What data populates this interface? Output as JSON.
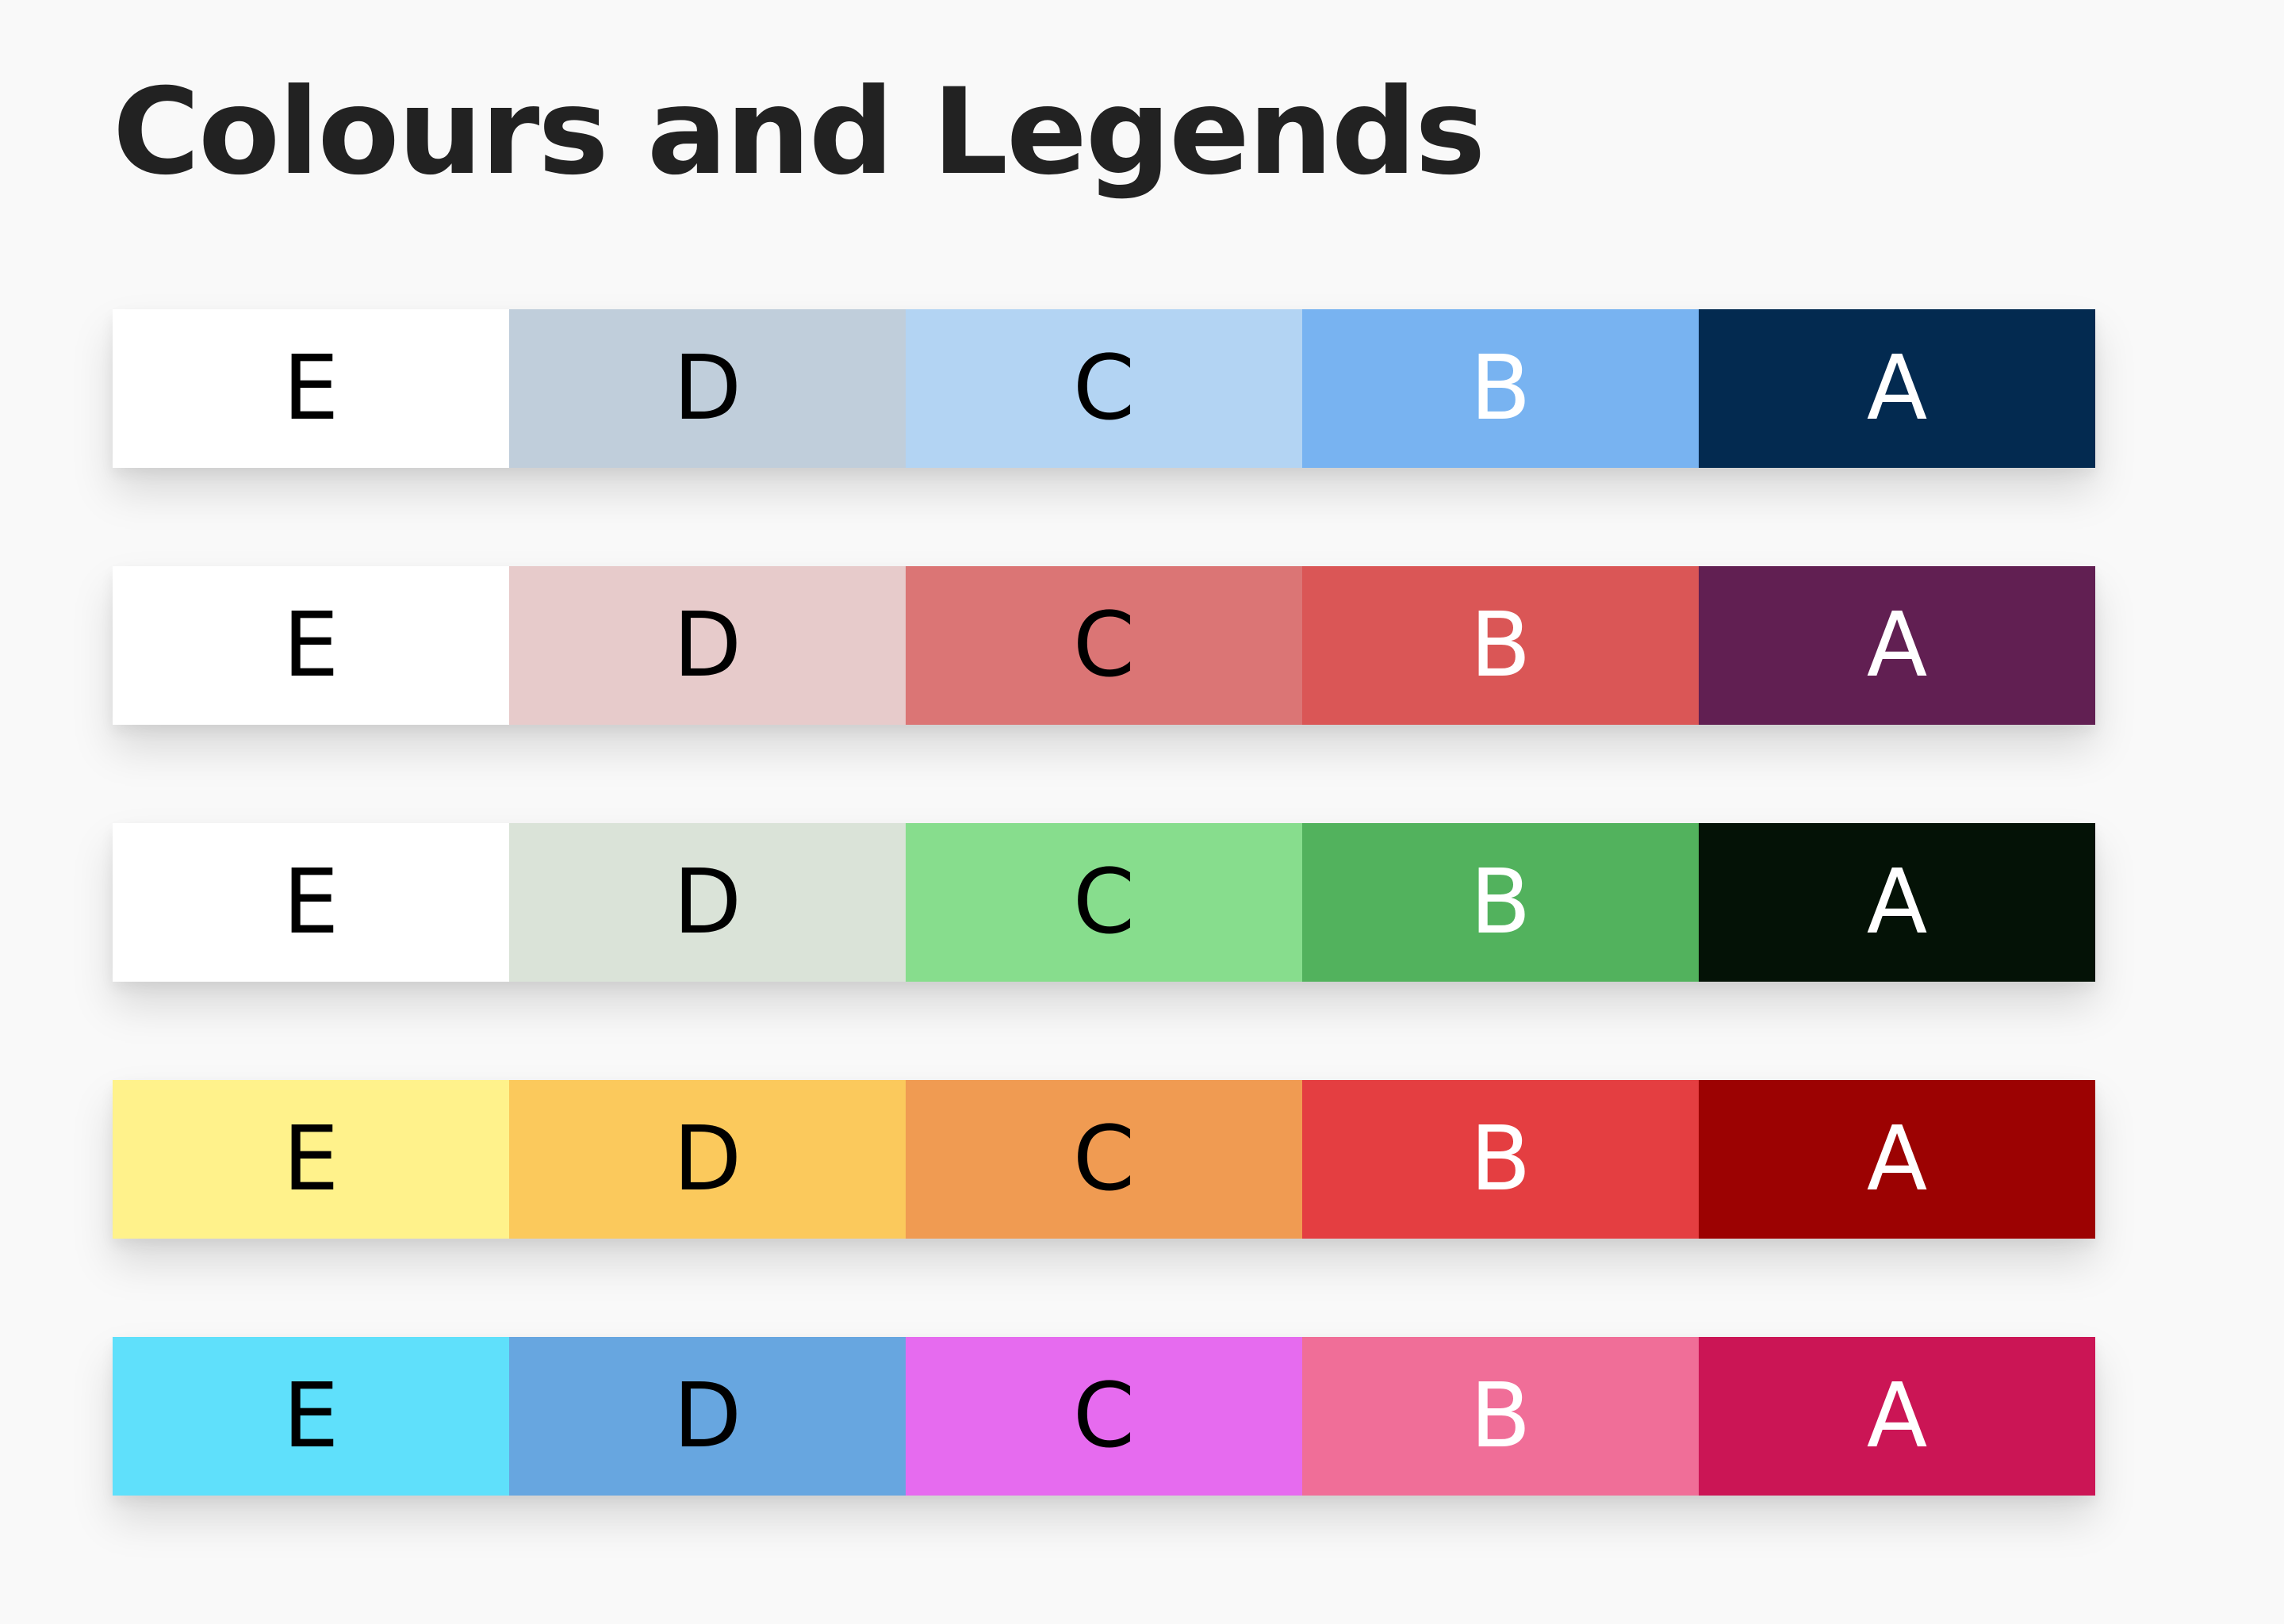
{
  "title": "Colours and Legends",
  "legends": [
    {
      "swatches": [
        {
          "label": "E",
          "bg": "#ffffff",
          "fg": "#000000"
        },
        {
          "label": "D",
          "bg": "#c0cedb",
          "fg": "#000000"
        },
        {
          "label": "C",
          "bg": "#b3d4f3",
          "fg": "#000000"
        },
        {
          "label": "B",
          "bg": "#78b3f1",
          "fg": "#ffffff"
        },
        {
          "label": "A",
          "bg": "#032a50",
          "fg": "#ffffff"
        }
      ]
    },
    {
      "swatches": [
        {
          "label": "E",
          "bg": "#ffffff",
          "fg": "#000000"
        },
        {
          "label": "D",
          "bg": "#e7cbcb",
          "fg": "#000000"
        },
        {
          "label": "C",
          "bg": "#db7575",
          "fg": "#000000"
        },
        {
          "label": "B",
          "bg": "#da5656",
          "fg": "#ffffff"
        },
        {
          "label": "A",
          "bg": "#611f52",
          "fg": "#ffffff"
        }
      ]
    },
    {
      "swatches": [
        {
          "label": "E",
          "bg": "#ffffff",
          "fg": "#000000"
        },
        {
          "label": "D",
          "bg": "#dae3d8",
          "fg": "#000000"
        },
        {
          "label": "C",
          "bg": "#87dd8d",
          "fg": "#000000"
        },
        {
          "label": "B",
          "bg": "#52b25d",
          "fg": "#ffffff"
        },
        {
          "label": "A",
          "bg": "#041206",
          "fg": "#ffffff"
        }
      ]
    },
    {
      "swatches": [
        {
          "label": "E",
          "bg": "#fff28b",
          "fg": "#000000"
        },
        {
          "label": "D",
          "bg": "#fbc95c",
          "fg": "#000000"
        },
        {
          "label": "C",
          "bg": "#f09b52",
          "fg": "#000000"
        },
        {
          "label": "B",
          "bg": "#e43e41",
          "fg": "#ffffff"
        },
        {
          "label": "A",
          "bg": "#9c0202",
          "fg": "#ffffff"
        }
      ]
    },
    {
      "swatches": [
        {
          "label": "E",
          "bg": "#5fe0fb",
          "fg": "#000000"
        },
        {
          "label": "D",
          "bg": "#67a6e0",
          "fg": "#000000"
        },
        {
          "label": "C",
          "bg": "#e66bef",
          "fg": "#000000"
        },
        {
          "label": "B",
          "bg": "#f06e98",
          "fg": "#ffffff"
        },
        {
          "label": "A",
          "bg": "#cb1555",
          "fg": "#ffffff"
        }
      ]
    }
  ]
}
